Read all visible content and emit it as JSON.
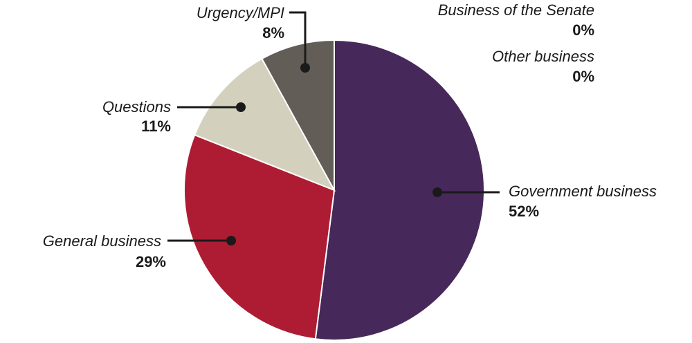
{
  "chart_data": {
    "type": "pie",
    "title": "",
    "slices": [
      {
        "label": "Government business",
        "value": 52,
        "value_label": "52%",
        "color": "#47285a"
      },
      {
        "label": "General business",
        "value": 29,
        "value_label": "29%",
        "color": "#ae1c33"
      },
      {
        "label": "Questions",
        "value": 11,
        "value_label": "11%",
        "color": "#d3d1bd"
      },
      {
        "label": "Urgency/MPI",
        "value": 8,
        "value_label": "8%",
        "color": "#625d57"
      },
      {
        "label": "Business of the Senate",
        "value": 0,
        "value_label": "0%",
        "color": "#000000"
      },
      {
        "label": "Other business",
        "value": 0,
        "value_label": "0%",
        "color": "#000000"
      }
    ]
  }
}
